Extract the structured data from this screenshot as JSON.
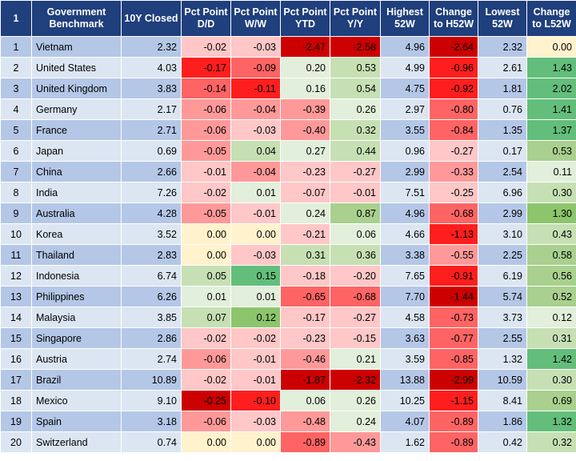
{
  "headers": [
    "1",
    "Government Benchmark",
    "10Y Closed",
    "Pct Point D/D",
    "Pct Point W/W",
    "Pct Point YTD",
    "Pct Point Y/Y",
    "Highest 52W",
    "Change to H52W",
    "Lowest 52W",
    "Change to L52W"
  ],
  "rows": [
    {
      "rank": "1",
      "country": "Vietnam",
      "closed": "2.32",
      "dd": "-0.02",
      "ww": "-0.03",
      "ytd": "-2.47",
      "yy": "-2.58",
      "high": "4.96",
      "ch_high": "-2.64",
      "low": "2.32",
      "ch_low": "0.00"
    },
    {
      "rank": "2",
      "country": "United States",
      "closed": "4.03",
      "dd": "-0.17",
      "ww": "-0.09",
      "ytd": "0.20",
      "yy": "0.53",
      "high": "4.99",
      "ch_high": "-0.96",
      "low": "2.61",
      "ch_low": "1.43"
    },
    {
      "rank": "3",
      "country": "United Kingdom",
      "closed": "3.83",
      "dd": "-0.14",
      "ww": "-0.11",
      "ytd": "0.16",
      "yy": "0.54",
      "high": "4.75",
      "ch_high": "-0.92",
      "low": "1.81",
      "ch_low": "2.02"
    },
    {
      "rank": "4",
      "country": "Germany",
      "closed": "2.17",
      "dd": "-0.06",
      "ww": "-0.04",
      "ytd": "-0.39",
      "yy": "0.26",
      "high": "2.97",
      "ch_high": "-0.80",
      "low": "0.76",
      "ch_low": "1.41"
    },
    {
      "rank": "5",
      "country": "France",
      "closed": "2.71",
      "dd": "-0.06",
      "ww": "-0.03",
      "ytd": "-0.40",
      "yy": "0.32",
      "high": "3.55",
      "ch_high": "-0.84",
      "low": "1.35",
      "ch_low": "1.37"
    },
    {
      "rank": "6",
      "country": "Japan",
      "closed": "0.69",
      "dd": "-0.05",
      "ww": "0.04",
      "ytd": "0.27",
      "yy": "0.44",
      "high": "0.96",
      "ch_high": "-0.27",
      "low": "0.17",
      "ch_low": "0.53"
    },
    {
      "rank": "7",
      "country": "China",
      "closed": "2.66",
      "dd": "-0.01",
      "ww": "-0.04",
      "ytd": "-0.23",
      "yy": "-0.27",
      "high": "2.99",
      "ch_high": "-0.33",
      "low": "2.54",
      "ch_low": "0.11"
    },
    {
      "rank": "8",
      "country": "India",
      "closed": "7.26",
      "dd": "-0.02",
      "ww": "0.01",
      "ytd": "-0.07",
      "yy": "-0.01",
      "high": "7.51",
      "ch_high": "-0.25",
      "low": "6.96",
      "ch_low": "0.30"
    },
    {
      "rank": "9",
      "country": "Australia",
      "closed": "4.28",
      "dd": "-0.05",
      "ww": "-0.01",
      "ytd": "0.24",
      "yy": "0.87",
      "high": "4.96",
      "ch_high": "-0.68",
      "low": "2.99",
      "ch_low": "1.30"
    },
    {
      "rank": "10",
      "country": "Korea",
      "closed": "3.52",
      "dd": "0.00",
      "ww": "0.00",
      "ytd": "-0.21",
      "yy": "0.06",
      "high": "4.66",
      "ch_high": "-1.13",
      "low": "3.10",
      "ch_low": "0.43"
    },
    {
      "rank": "11",
      "country": "Thailand",
      "closed": "2.83",
      "dd": "0.00",
      "ww": "-0.03",
      "ytd": "0.31",
      "yy": "0.36",
      "high": "3.38",
      "ch_high": "-0.55",
      "low": "2.25",
      "ch_low": "0.58"
    },
    {
      "rank": "12",
      "country": "Indonesia",
      "closed": "6.74",
      "dd": "0.05",
      "ww": "0.15",
      "ytd": "-0.18",
      "yy": "-0.20",
      "high": "7.65",
      "ch_high": "-0.91",
      "low": "6.19",
      "ch_low": "0.56"
    },
    {
      "rank": "13",
      "country": "Philippines",
      "closed": "6.26",
      "dd": "0.01",
      "ww": "0.01",
      "ytd": "-0.65",
      "yy": "-0.68",
      "high": "7.70",
      "ch_high": "-1.44",
      "low": "5.74",
      "ch_low": "0.52"
    },
    {
      "rank": "14",
      "country": "Malaysia",
      "closed": "3.85",
      "dd": "0.07",
      "ww": "0.12",
      "ytd": "-0.17",
      "yy": "-0.27",
      "high": "4.58",
      "ch_high": "-0.73",
      "low": "3.73",
      "ch_low": "0.12"
    },
    {
      "rank": "15",
      "country": "Singapore",
      "closed": "2.86",
      "dd": "-0.02",
      "ww": "-0.02",
      "ytd": "-0.23",
      "yy": "-0.15",
      "high": "3.63",
      "ch_high": "-0.77",
      "low": "2.55",
      "ch_low": "0.31"
    },
    {
      "rank": "16",
      "country": "Austria",
      "closed": "2.74",
      "dd": "-0.06",
      "ww": "-0.01",
      "ytd": "-0.46",
      "yy": "0.21",
      "high": "3.59",
      "ch_high": "-0.85",
      "low": "1.32",
      "ch_low": "1.42"
    },
    {
      "rank": "17",
      "country": "Brazil",
      "closed": "10.89",
      "dd": "-0.02",
      "ww": "-0.01",
      "ytd": "-1.87",
      "yy": "-2.32",
      "high": "13.88",
      "ch_high": "-2.99",
      "low": "10.59",
      "ch_low": "0.30"
    },
    {
      "rank": "18",
      "country": "Mexico",
      "closed": "9.10",
      "dd": "-0.25",
      "ww": "-0.10",
      "ytd": "0.06",
      "yy": "0.26",
      "high": "10.25",
      "ch_high": "-1.15",
      "low": "8.41",
      "ch_low": "0.69"
    },
    {
      "rank": "19",
      "country": "Spain",
      "closed": "3.18",
      "dd": "-0.06",
      "ww": "-0.03",
      "ytd": "-0.48",
      "yy": "0.24",
      "high": "4.07",
      "ch_high": "-0.89",
      "low": "1.86",
      "ch_low": "1.32"
    },
    {
      "rank": "20",
      "country": "Switzerland",
      "closed": "0.74",
      "dd": "0.00",
      "ww": "0.00",
      "ytd": "-0.89",
      "yy": "-0.43",
      "high": "1.62",
      "ch_high": "-0.89",
      "low": "0.42",
      "ch_low": "0.32"
    }
  ],
  "colors": {
    "header_bg": "#1f3f7d",
    "row_odd": "#b4c7e7",
    "row_even": "#dce6f2",
    "negative_scale": [
      "#ffc7c7",
      "#ff9999",
      "#ff6464",
      "#ff1e1e",
      "#cc0000"
    ],
    "positive_scale": [
      "#e2efda",
      "#c6e0b4",
      "#a9d08e",
      "#8cc56b",
      "#63be7b"
    ],
    "neutral_zero": "#fff2cc"
  }
}
